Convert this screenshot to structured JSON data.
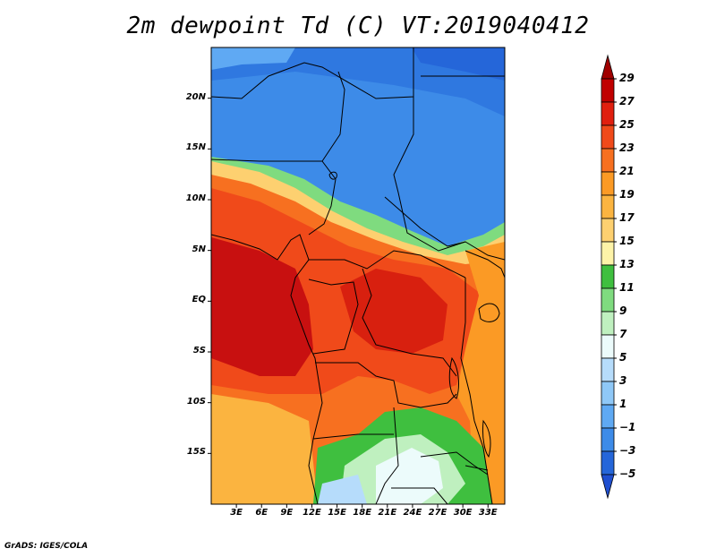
{
  "title": "2m dewpoint Td (C) VT:2019040412",
  "credit": "GrADS: IGES/COLA",
  "map": {
    "lat_range": [
      -20,
      25
    ],
    "lon_range": [
      0,
      35
    ],
    "lat_labels": [
      "20N",
      "15N",
      "10N",
      "5N",
      "EQ",
      "5S",
      "10S",
      "15S"
    ],
    "lon_labels": [
      "3E",
      "6E",
      "9E",
      "12E",
      "15E",
      "18E",
      "21E",
      "24E",
      "27E",
      "30E",
      "33E"
    ]
  },
  "colorbar": {
    "levels": [
      "29",
      "27",
      "25",
      "23",
      "21",
      "19",
      "17",
      "15",
      "13",
      "11",
      "9",
      "7",
      "5",
      "3",
      "1",
      "−1",
      "−3",
      "−5"
    ],
    "colors": [
      "#a00000",
      "#c00000",
      "#e01f0f",
      "#f04a1a",
      "#f77020",
      "#fb9a25",
      "#fbb440",
      "#fdd070",
      "#fdf3a8",
      "#3fbf3f",
      "#7fdb7f",
      "#bff0bf",
      "#ecfbfb",
      "#b6dcfb",
      "#8fc8f7",
      "#5fa9f3",
      "#3d8be8",
      "#2566d9",
      "#1f4fd0"
    ]
  }
}
